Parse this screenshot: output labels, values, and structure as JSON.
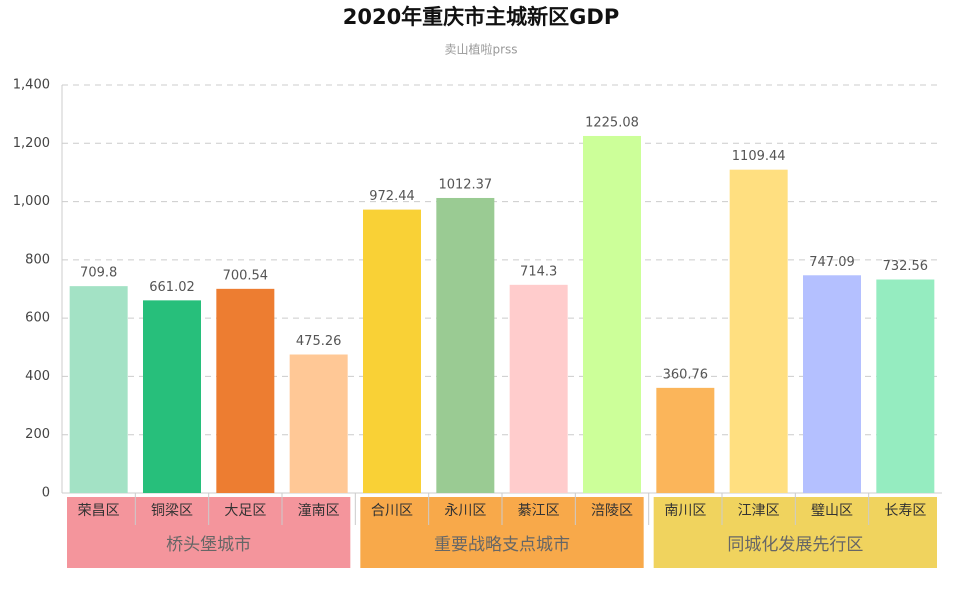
{
  "chart_data": {
    "type": "bar",
    "title": "2020年重庆市主城新区GDP",
    "subtitle": "卖山植啦prss",
    "ylim": [
      0,
      1400
    ],
    "yticks": [
      0,
      200,
      400,
      600,
      800,
      {
        "value": 1000,
        "label": "1,000"
      },
      {
        "value": 1200,
        "label": "1,200"
      },
      {
        "value": 1400,
        "label": "1,400"
      }
    ],
    "grid": true,
    "groups": [
      {
        "name": "桥头堡城市",
        "color": "#f4959c",
        "categories": [
          "荣昌区",
          "铜梁区",
          "大足区",
          "潼南区"
        ],
        "values": [
          709.8,
          661.02,
          700.54,
          475.26
        ],
        "colors": [
          "#a3e2c5",
          "#27bf7b",
          "#ed7d31",
          "#ffc896"
        ]
      },
      {
        "name": "重要战略支点城市",
        "color": "#f8a94a",
        "categories": [
          "合川区",
          "永川区",
          "綦江区",
          "涪陵区"
        ],
        "values": [
          972.44,
          1012.37,
          714.3,
          1225.08
        ],
        "colors": [
          "#f9d136",
          "#9acb93",
          "#ffcccc",
          "#ccff99"
        ]
      },
      {
        "name": "同城化发展先行区",
        "color": "#f0d35e",
        "categories": [
          "南川区",
          "江津区",
          "璧山区",
          "长寿区"
        ],
        "values": [
          360.76,
          1109.44,
          747.09,
          732.56
        ],
        "colors": [
          "#fbb55a",
          "#ffdf80",
          "#b4c0ff",
          "#95ecc0"
        ]
      }
    ]
  }
}
